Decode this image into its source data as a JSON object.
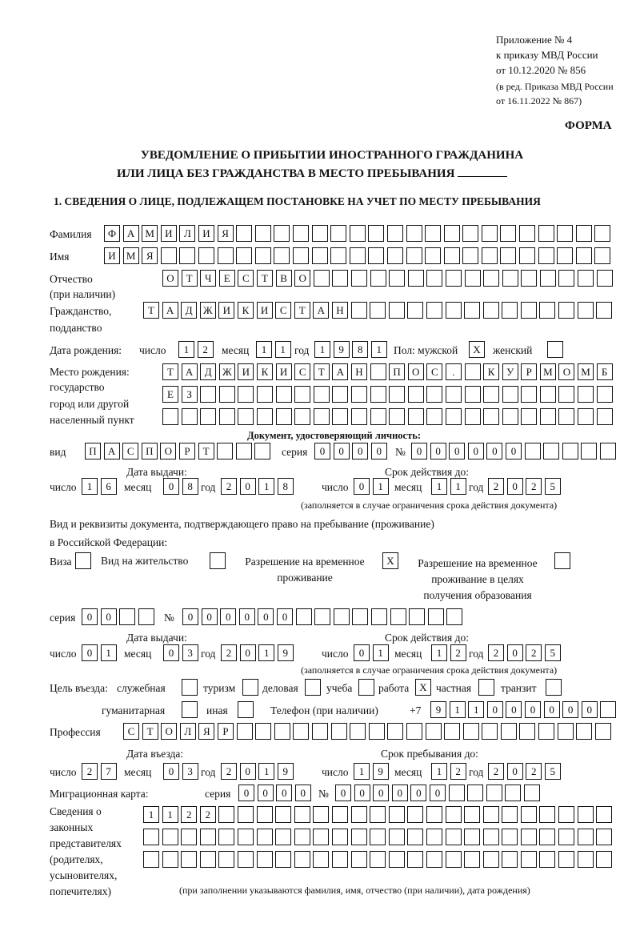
{
  "header": {
    "appendix": [
      "Приложение № 4",
      "к приказу МВД России",
      "от 10.12.2020 № 856"
    ],
    "edition": [
      "(в ред. Приказа МВД России",
      "от 16.11.2022 № 867)"
    ],
    "form_label": "ФОРМА"
  },
  "title": {
    "line1": "УВЕДОМЛЕНИЕ О ПРИБЫТИИ ИНОСТРАННОГО ГРАЖДАНИНА",
    "line2": "ИЛИ ЛИЦА БЕЗ ГРАЖДАНСТВА В МЕСТО ПРЕБЫВАНИЯ",
    "section1": "1. СВЕДЕНИЯ О ЛИЦЕ, ПОДЛЕЖАЩЕМ ПОСТАНОВКЕ НА УЧЕТ ПО МЕСТУ ПРЕБЫВАНИЯ"
  },
  "person": {
    "surname_label": "Фамилия",
    "surname": "ФАМИЛИЯ",
    "name_label": "Имя",
    "name": "ИМЯ",
    "patronymic_label": [
      "Отчество",
      "(при наличии)"
    ],
    "patronymic": "ОТЧЕСТВО",
    "citizenship_label": [
      "Гражданство,",
      "подданство"
    ],
    "citizenship": "ТАДЖИКИСТАН",
    "birth": {
      "label": "Дата рождения:",
      "day_label": "число",
      "day": "12",
      "month_label": "месяц",
      "month": "11",
      "year_label": "год",
      "year": "1981",
      "sex_label": "Пол: мужской",
      "male": "X",
      "female_label": "женский",
      "female": ""
    },
    "birthplace_label": [
      "Место рождения:",
      "государство",
      "город или другой",
      "населенный пункт"
    ],
    "birthplace": [
      "ТАДЖИКИСТАН ПОС. КУРМОМБ",
      "ЕЗ",
      ""
    ]
  },
  "id_doc": {
    "heading": "Документ, удостоверяющий личность:",
    "type_label": "вид",
    "type": "ПАСПОРТ",
    "series_label": "серия",
    "series": "0000",
    "number_label": "№",
    "number": "000000",
    "issue_label": "Дата выдачи:",
    "valid_label": "Срок действия до:",
    "day_label": "число",
    "month_label": "месяц",
    "year_label": "год",
    "issue": {
      "day": "16",
      "month": "08",
      "year": "2018"
    },
    "valid": {
      "day": "01",
      "month": "11",
      "year": "2025"
    },
    "note": "(заполняется в случае ограничения срока действия документа)"
  },
  "stay_doc": {
    "intro": [
      "Вид и реквизиты документа, подтверждающего право на пребывание (проживание)",
      "в Российской Федерации:"
    ],
    "visa_label": "Виза",
    "visa": "",
    "residence_label": "Вид на жительство",
    "residence": "",
    "temp_label": [
      "Разрешение на временное",
      "проживание"
    ],
    "temp": "X",
    "edu_label": [
      "Разрешение на временное",
      "проживание в целях",
      "получения образования"
    ],
    "edu": "",
    "series_label": "серия",
    "series": "00",
    "number_label": "№",
    "number": "000000",
    "issue": {
      "day": "01",
      "month": "03",
      "year": "2019"
    },
    "valid": {
      "day": "01",
      "month": "12",
      "year": "2025"
    }
  },
  "purpose": {
    "label": "Цель въезда:",
    "options": [
      {
        "label": "служебная",
        "value": ""
      },
      {
        "label": "туризм",
        "value": ""
      },
      {
        "label": "деловая",
        "value": ""
      },
      {
        "label": "учеба",
        "value": ""
      },
      {
        "label": "работа",
        "value": "X"
      },
      {
        "label": "частная",
        "value": ""
      },
      {
        "label": "транзит",
        "value": ""
      },
      {
        "label": "гуманитарная",
        "value": ""
      },
      {
        "label": "иная",
        "value": ""
      }
    ],
    "phone_label": "Телефон (при наличии)",
    "phone_prefix": "+7",
    "phone": "911000000"
  },
  "profession": {
    "label": "Профессия",
    "value": "СТОЛЯР"
  },
  "entry": {
    "entry_label": "Дата въезда:",
    "stay_label": "Срок пребывания до:",
    "entry": {
      "day": "27",
      "month": "03",
      "year": "2019"
    },
    "stay": {
      "day": "19",
      "month": "12",
      "year": "2025"
    }
  },
  "migration_card": {
    "label": "Миграционная карта:",
    "series_label": "серия",
    "series": "0000",
    "number_label": "№",
    "number": "000000"
  },
  "representatives": {
    "label": [
      "Сведения о",
      "законных",
      "представителях",
      "(родителях,",
      "усыновителях,",
      "попечителях)"
    ],
    "rows": [
      "1122",
      "",
      ""
    ],
    "note": "(при заполнении указываются фамилия, имя, отчество (при наличии), дата рождения)"
  }
}
